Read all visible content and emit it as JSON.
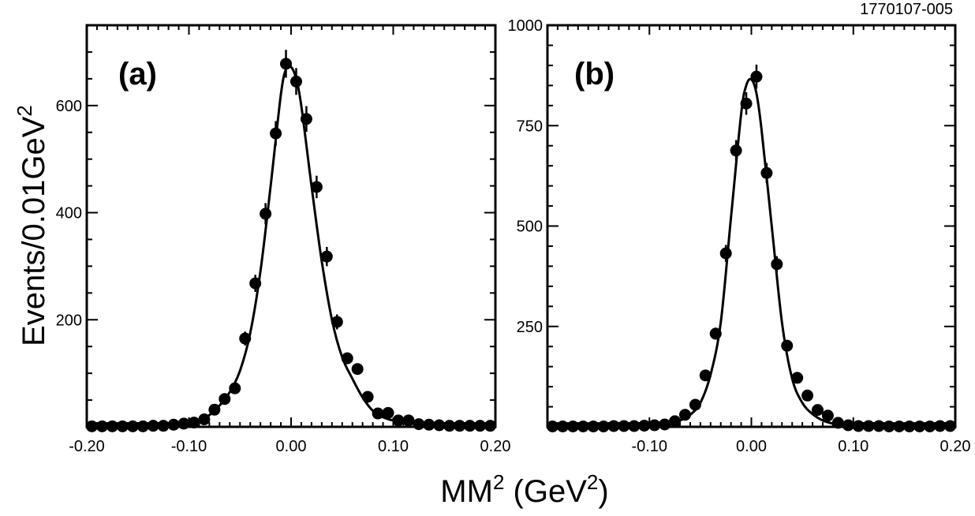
{
  "figure_id": "1770107-005",
  "ylabel": {
    "text": "Events/0.01GeV",
    "sup": "2"
  },
  "xlabel": {
    "pre": "MM",
    "sup1": "2",
    "mid": " (GeV",
    "sup2": "2",
    "post": ")"
  },
  "chart_data": [
    {
      "type": "scatter",
      "panel_label": "(a)",
      "xlim": [
        -0.2,
        0.2
      ],
      "ylim": [
        0,
        750
      ],
      "x_ticks": [
        -0.2,
        -0.1,
        0.0,
        0.1,
        0.2
      ],
      "x_tick_labels": [
        "-0.20",
        "-0.10",
        "0.00",
        "0.10",
        "0.20"
      ],
      "y_ticks": [
        200,
        400,
        600
      ],
      "y_tick_labels": [
        "200",
        "400",
        "600"
      ],
      "grid": false,
      "points": {
        "x": [
          -0.195,
          -0.185,
          -0.175,
          -0.165,
          -0.155,
          -0.145,
          -0.135,
          -0.125,
          -0.115,
          -0.105,
          -0.095,
          -0.085,
          -0.075,
          -0.065,
          -0.055,
          -0.045,
          -0.035,
          -0.025,
          -0.015,
          -0.005,
          0.005,
          0.015,
          0.025,
          0.035,
          0.045,
          0.055,
          0.065,
          0.075,
          0.085,
          0.095,
          0.105,
          0.115,
          0.125,
          0.135,
          0.145,
          0.155,
          0.165,
          0.175,
          0.185,
          0.195
        ],
        "y": [
          1,
          1,
          1,
          1,
          1,
          1,
          2,
          2,
          4,
          6,
          8,
          14,
          32,
          52,
          72,
          165,
          268,
          398,
          548,
          678,
          645,
          575,
          448,
          318,
          196,
          128,
          108,
          56,
          25,
          26,
          12,
          12,
          5,
          4,
          3,
          2,
          2,
          2,
          2,
          2
        ],
        "yerr": [
          1,
          1,
          1,
          1,
          1,
          1,
          1,
          1,
          2,
          2,
          3,
          4,
          6,
          7,
          9,
          13,
          16,
          20,
          23,
          26,
          25,
          24,
          21,
          18,
          14,
          11,
          10,
          7,
          5,
          5,
          3,
          3,
          2,
          2,
          2,
          1,
          1,
          1,
          1,
          1
        ]
      },
      "fit_curve": {
        "x": [
          -0.2,
          -0.15,
          -0.12,
          -0.1,
          -0.09,
          -0.08,
          -0.07,
          -0.06,
          -0.05,
          -0.04,
          -0.03,
          -0.02,
          -0.01,
          -0.005,
          0.0,
          0.005,
          0.01,
          0.02,
          0.03,
          0.04,
          0.05,
          0.06,
          0.07,
          0.08,
          0.09,
          0.1,
          0.12,
          0.15,
          0.2
        ],
        "y": [
          1,
          2,
          4,
          8,
          12,
          22,
          40,
          65,
          105,
          175,
          290,
          450,
          620,
          668,
          672,
          650,
          600,
          450,
          310,
          200,
          130,
          90,
          55,
          30,
          18,
          12,
          6,
          3,
          1
        ]
      }
    },
    {
      "type": "scatter",
      "panel_label": "(b)",
      "xlim": [
        -0.2,
        0.2
      ],
      "ylim": [
        0,
        1000
      ],
      "x_ticks": [
        -0.1,
        0.0,
        0.1,
        0.2
      ],
      "x_tick_labels": [
        "-0.10",
        "0.00",
        "0.10",
        "0.20"
      ],
      "y_ticks": [
        250,
        500,
        750,
        1000
      ],
      "y_tick_labels": [
        "250",
        "500",
        "750",
        "1000"
      ],
      "grid": false,
      "points": {
        "x": [
          -0.195,
          -0.185,
          -0.175,
          -0.165,
          -0.155,
          -0.145,
          -0.135,
          -0.125,
          -0.115,
          -0.105,
          -0.095,
          -0.085,
          -0.075,
          -0.065,
          -0.055,
          -0.045,
          -0.035,
          -0.025,
          -0.015,
          -0.005,
          0.005,
          0.015,
          0.025,
          0.035,
          0.045,
          0.055,
          0.065,
          0.075,
          0.085,
          0.095,
          0.105,
          0.115,
          0.125,
          0.135,
          0.145,
          0.155,
          0.165,
          0.175,
          0.185,
          0.195
        ],
        "y": [
          1,
          1,
          1,
          1,
          1,
          1,
          2,
          2,
          2,
          3,
          4,
          6,
          14,
          30,
          55,
          128,
          232,
          432,
          688,
          805,
          872,
          632,
          405,
          202,
          122,
          78,
          42,
          28,
          10,
          4,
          2,
          2,
          2,
          1,
          1,
          1,
          1,
          1,
          2,
          2
        ],
        "yerr": [
          1,
          1,
          1,
          1,
          1,
          1,
          1,
          1,
          1,
          2,
          2,
          2,
          4,
          5,
          7,
          11,
          15,
          21,
          26,
          28,
          30,
          25,
          20,
          14,
          11,
          9,
          6,
          5,
          3,
          2,
          1,
          1,
          1,
          1,
          1,
          1,
          1,
          1,
          1,
          1
        ]
      },
      "fit_curve": {
        "x": [
          -0.2,
          -0.15,
          -0.12,
          -0.1,
          -0.09,
          -0.08,
          -0.07,
          -0.06,
          -0.05,
          -0.04,
          -0.03,
          -0.02,
          -0.01,
          -0.005,
          0.0,
          0.005,
          0.01,
          0.02,
          0.03,
          0.04,
          0.05,
          0.06,
          0.07,
          0.08,
          0.09,
          0.1,
          0.12,
          0.15,
          0.2
        ],
        "y": [
          1,
          1,
          2,
          3,
          5,
          9,
          16,
          30,
          60,
          130,
          260,
          520,
          780,
          850,
          865,
          830,
          740,
          500,
          260,
          120,
          60,
          32,
          16,
          8,
          4,
          3,
          2,
          1,
          1
        ]
      }
    }
  ]
}
